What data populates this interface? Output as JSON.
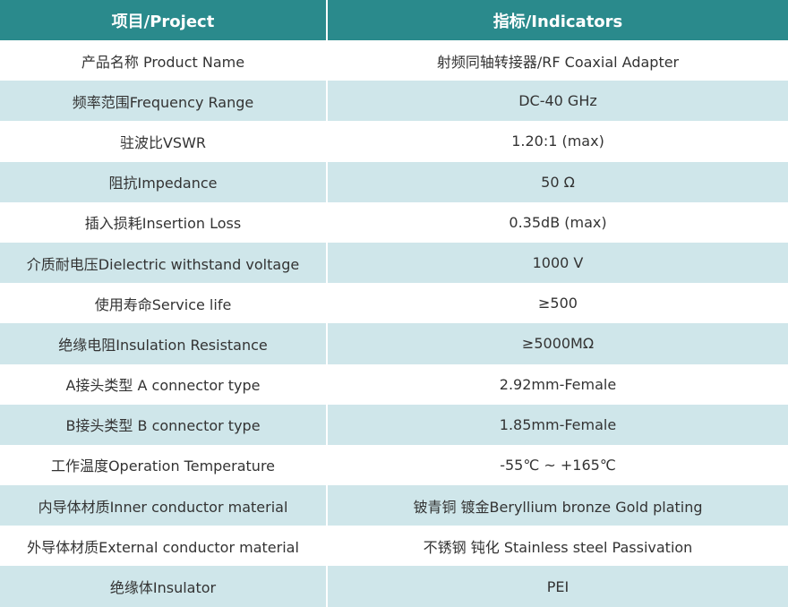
{
  "table": {
    "header": [
      "项目/Project",
      "指标/Indicators"
    ],
    "rows": [
      [
        "产品名称 Product Name",
        "射频同轴转接器/RF Coaxial Adapter"
      ],
      [
        "频率范围Frequency Range",
        "DC-40 GHz"
      ],
      [
        "驻波比VSWR",
        "1.20:1 (max)"
      ],
      [
        "阻抗Impedance",
        "50 Ω"
      ],
      [
        "插入损耗Insertion Loss",
        "0.35dB (max)"
      ],
      [
        "介质耐电压Dielectric withstand voltage",
        "1000 V"
      ],
      [
        "使用寿命Service life",
        "≥500"
      ],
      [
        "绝缘电阻Insulation Resistance",
        "≥5000MΩ"
      ],
      [
        "A接头类型 A connector type",
        "2.92mm-Female"
      ],
      [
        "B接头类型 B connector type",
        "1.85mm-Female"
      ],
      [
        "工作温度Operation Temperature",
        "-55℃ ~ +165℃"
      ],
      [
        "内导体材质Inner conductor material",
        "铍青铜 镀金Beryllium bronze Gold plating"
      ],
      [
        "外导体材质External conductor material",
        "不锈钢 钝化 Stainless steel Passivation"
      ],
      [
        "绝缘体Insulator",
        "PEI"
      ]
    ]
  }
}
